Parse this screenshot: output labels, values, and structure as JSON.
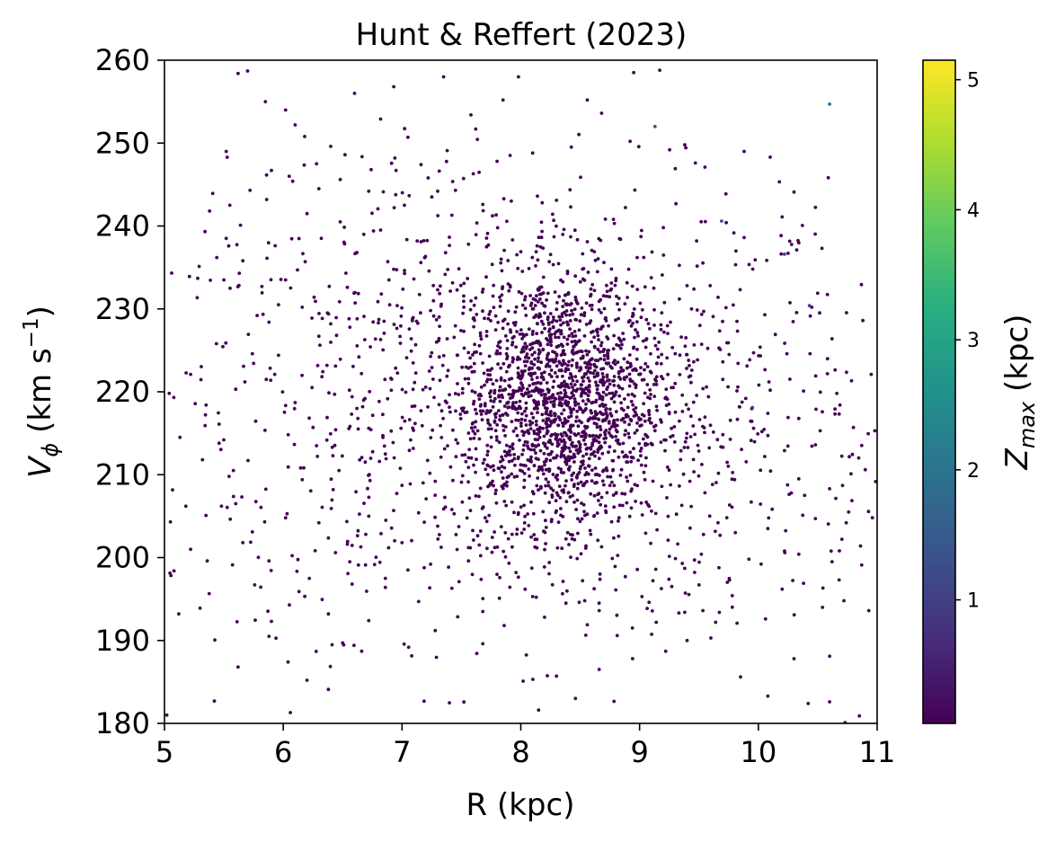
{
  "chart_data": {
    "type": "scatter",
    "title": "Hunt & Reffert (2023)",
    "xlabel": "R (kpc)",
    "ylabel_main": "V",
    "ylabel_sub": "ϕ",
    "ylabel_unit": " (km s",
    "ylabel_exp": "−1",
    "ylabel_close": ")",
    "xlim": [
      5,
      11
    ],
    "ylim": [
      180,
      260
    ],
    "xticks": [
      5,
      6,
      7,
      8,
      9,
      10,
      11
    ],
    "yticks": [
      180,
      190,
      200,
      210,
      220,
      230,
      240,
      250,
      260
    ],
    "xtick_labels": [
      "5",
      "6",
      "7",
      "8",
      "9",
      "10",
      "11"
    ],
    "ytick_labels": [
      "180",
      "190",
      "200",
      "210",
      "220",
      "230",
      "240",
      "250",
      "260"
    ],
    "grid": false,
    "colorbar": {
      "label_main": "Z",
      "label_sub": "max",
      "label_unit": " (kpc)",
      "range": [
        0.05,
        5.15
      ],
      "ticks": [
        1,
        2,
        3,
        4,
        5
      ],
      "tick_labels": [
        "1",
        "2",
        "3",
        "4",
        "5"
      ],
      "colormap": "viridis"
    },
    "series": [
      {
        "color": "#440154",
        "z_max": 0.1,
        "points": [
          [
            5.52,
            249
          ],
          [
            5.62,
            258.4
          ],
          [
            5.7,
            258.7
          ],
          [
            5.85,
            255
          ],
          [
            6.02,
            254
          ],
          [
            6.1,
            252.2
          ],
          [
            6.28,
            247.5
          ],
          [
            6.4,
            249.6
          ],
          [
            6.6,
            256
          ],
          [
            6.93,
            256.8
          ],
          [
            6.82,
            252.9
          ],
          [
            7.05,
            250.7
          ],
          [
            7.35,
            258
          ],
          [
            7.58,
            253.4
          ],
          [
            7.62,
            251.7
          ],
          [
            7.85,
            255.2
          ],
          [
            7.98,
            258
          ],
          [
            8.1,
            248.8
          ],
          [
            8.3,
            243.1
          ],
          [
            8.56,
            255.2
          ],
          [
            8.68,
            253.6
          ],
          [
            8.95,
            258.5
          ],
          [
            9.17,
            258.8
          ],
          [
            9.38,
            249.8
          ],
          [
            9.55,
            247.1
          ],
          [
            9.88,
            249
          ],
          [
            10.1,
            248.3
          ],
          [
            10.3,
            244.1
          ],
          [
            9.73,
            240.4
          ],
          [
            10.2,
            241.1
          ],
          [
            6.18,
            250.8
          ],
          [
            6.48,
            245.6
          ],
          [
            6.72,
            244.2
          ],
          [
            6.95,
            246.7
          ],
          [
            7.22,
            245.8
          ],
          [
            7.45,
            244.3
          ],
          [
            7.68,
            242.6
          ],
          [
            7.92,
            243
          ],
          [
            8.18,
            242.8
          ],
          [
            8.42,
            238.7
          ],
          [
            8.78,
            240.8
          ],
          [
            9.2,
            239.8
          ],
          [
            9.48,
            238.2
          ],
          [
            9.88,
            238.6
          ],
          [
            10.25,
            236.7
          ],
          [
            10.45,
            230.2
          ],
          [
            10.62,
            226.4
          ],
          [
            10.88,
            228.6
          ],
          [
            10.95,
            222.1
          ],
          [
            10.98,
            215.3
          ],
          [
            10.78,
            210.1
          ],
          [
            10.96,
            204.8
          ],
          [
            10.87,
            199.1
          ],
          [
            10.72,
            194.8
          ],
          [
            10.93,
            193.6
          ],
          [
            10.6,
            188.1
          ],
          [
            10.85,
            180.9
          ],
          [
            10.73,
            180.1
          ],
          [
            10.6,
            182.6
          ],
          [
            10.42,
            182.4
          ],
          [
            10.3,
            187.8
          ],
          [
            10.08,
            183.3
          ],
          [
            9.85,
            185.6
          ],
          [
            9.6,
            190.3
          ],
          [
            9.38,
            193.4
          ],
          [
            9.14,
            192.2
          ],
          [
            9.02,
            195.3
          ],
          [
            8.88,
            197.7
          ],
          [
            8.66,
            186.5
          ],
          [
            8.46,
            183
          ],
          [
            8.3,
            185.7
          ],
          [
            8.15,
            181.6
          ],
          [
            8.02,
            185.1
          ],
          [
            7.86,
            191.8
          ],
          [
            7.68,
            193.5
          ],
          [
            7.48,
            197.1
          ],
          [
            7.24,
            199.2
          ],
          [
            7.05,
            198.5
          ],
          [
            6.86,
            196.4
          ],
          [
            6.66,
            188.7
          ],
          [
            6.5,
            189.7
          ],
          [
            6.38,
            184.1
          ],
          [
            6.2,
            185.2
          ],
          [
            6.06,
            181.3
          ],
          [
            5.88,
            190.5
          ],
          [
            5.62,
            186.8
          ],
          [
            5.42,
            182.7
          ],
          [
            5.3,
            193.9
          ],
          [
            5.12,
            193.2
          ],
          [
            5.02,
            181
          ],
          [
            5.08,
            198.4
          ],
          [
            5.22,
            201
          ],
          [
            5.36,
            199.6
          ],
          [
            5.18,
            206.2
          ],
          [
            5.05,
            204.3
          ],
          [
            5.13,
            214.5
          ],
          [
            5.04,
            219.8
          ],
          [
            5.22,
            222.1
          ],
          [
            5.35,
            218.4
          ],
          [
            5.46,
            213.8
          ],
          [
            5.58,
            210.5
          ],
          [
            5.48,
            206.2
          ],
          [
            5.66,
            201.8
          ],
          [
            5.76,
            196.7
          ],
          [
            5.9,
            192.3
          ],
          [
            6.04,
            187.4
          ],
          [
            6.22,
            197.5
          ],
          [
            6.38,
            193.2
          ],
          [
            6.56,
            199.5
          ],
          [
            6.72,
            205
          ],
          [
            6.42,
            208.2
          ],
          [
            6.28,
            213.5
          ],
          [
            6.1,
            218.7
          ],
          [
            5.96,
            224.4
          ],
          [
            5.78,
            229.2
          ],
          [
            5.63,
            234.3
          ],
          [
            5.52,
            238.5
          ],
          [
            5.38,
            241.8
          ],
          [
            5.55,
            242.5
          ],
          [
            5.72,
            244.3
          ],
          [
            5.9,
            246.7
          ],
          [
            6.05,
            246
          ],
          [
            6.2,
            241.5
          ],
          [
            6.32,
            238.5
          ],
          [
            6.48,
            240.5
          ],
          [
            6.62,
            236.8
          ],
          [
            6.76,
            239.4
          ],
          [
            6.88,
            235.7
          ],
          [
            7.02,
            242.5
          ],
          [
            7.16,
            238.1
          ],
          [
            7.3,
            244.2
          ],
          [
            7.42,
            241.3
          ],
          [
            7.56,
            237.8
          ],
          [
            7.72,
            239.1
          ],
          [
            7.84,
            234.6
          ],
          [
            8,
            236.9
          ],
          [
            8.08,
            231.6
          ],
          [
            8.24,
            235.7
          ],
          [
            8.38,
            231.7
          ],
          [
            8.52,
            234.8
          ],
          [
            8.66,
            230.9
          ],
          [
            8.8,
            233.4
          ],
          [
            8.94,
            229.1
          ],
          [
            9.06,
            226.4
          ],
          [
            9.18,
            227.5
          ],
          [
            9.3,
            224.6
          ],
          [
            9.44,
            222.6
          ],
          [
            9.58,
            219.4
          ],
          [
            9.7,
            221.5
          ],
          [
            9.84,
            218.2
          ],
          [
            9.96,
            215.6
          ],
          [
            10.08,
            217.4
          ],
          [
            10.22,
            212.9
          ],
          [
            10.34,
            209.5
          ],
          [
            10.48,
            213.6
          ],
          [
            10.6,
            208.3
          ],
          [
            10.74,
            204.2
          ],
          [
            10.86,
            201.4
          ],
          [
            10.68,
            197.3
          ],
          [
            10.54,
            194
          ],
          [
            10.38,
            196.9
          ],
          [
            10.22,
            200.8
          ],
          [
            10.08,
            203.5
          ],
          [
            9.94,
            206.7
          ],
          [
            9.8,
            209.4
          ],
          [
            9.66,
            204.2
          ],
          [
            9.52,
            200.4
          ],
          [
            9.38,
            198.7
          ],
          [
            9.24,
            202.1
          ],
          [
            9.1,
            205.6
          ],
          [
            8.96,
            208.8
          ],
          [
            8.82,
            204.4
          ],
          [
            8.68,
            201.3
          ],
          [
            8.54,
            205.1
          ],
          [
            8.4,
            207.8
          ],
          [
            8.26,
            204.6
          ],
          [
            8.12,
            202.2
          ],
          [
            7.98,
            205.4
          ],
          [
            7.84,
            208.6
          ],
          [
            7.7,
            204.8
          ],
          [
            7.56,
            201.2
          ],
          [
            7.42,
            205.8
          ],
          [
            7.28,
            209.2
          ],
          [
            7.14,
            205.4
          ],
          [
            7,
            208.7
          ],
          [
            6.86,
            212.5
          ],
          [
            6.72,
            215.6
          ],
          [
            6.58,
            219.4
          ],
          [
            6.44,
            223.1
          ],
          [
            6.3,
            226.7
          ],
          [
            6.16,
            230.2
          ],
          [
            6.02,
            233.5
          ],
          [
            5.88,
            228.4
          ],
          [
            5.74,
            224.6
          ],
          [
            5.6,
            220.3
          ],
          [
            5.46,
            216.1
          ],
          [
            5.32,
            211.8
          ],
          [
            5.6,
            206.5
          ],
          [
            5.74,
            203.1
          ],
          [
            5.88,
            199.6
          ],
          [
            6.02,
            204.8
          ],
          [
            6.16,
            209.4
          ],
          [
            6.3,
            204.2
          ],
          [
            6.44,
            200.6
          ],
          [
            6.58,
            196.8
          ],
          [
            6.72,
            192.4
          ],
          [
            6.86,
            197.5
          ],
          [
            7,
            201.8
          ],
          [
            7.14,
            194.7
          ],
          [
            7.28,
            191.2
          ],
          [
            7.42,
            196.3
          ],
          [
            7.56,
            199.6
          ],
          [
            7.68,
            189.6
          ],
          [
            7.82,
            195.1
          ],
          [
            7.96,
            198.2
          ],
          [
            8.1,
            195.3
          ],
          [
            8.24,
            199.4
          ],
          [
            8.38,
            194.5
          ],
          [
            8.52,
            197.2
          ],
          [
            8.66,
            193.6
          ],
          [
            8.8,
            196.1
          ],
          [
            8.94,
            191.5
          ],
          [
            9.08,
            194.6
          ],
          [
            9.22,
            188.7
          ],
          [
            9.36,
            199.3
          ],
          [
            9.5,
            196.7
          ],
          [
            9.64,
            192.2
          ],
          [
            9.78,
            195.4
          ],
          [
            9.92,
            199.8
          ],
          [
            10.06,
            192.6
          ],
          [
            10.2,
            196.2
          ],
          [
            10.34,
            200.4
          ],
          [
            10.48,
            204.7
          ],
          [
            10.62,
            199.5
          ],
          [
            10.76,
            205.5
          ],
          [
            10.9,
            210.6
          ],
          [
            10.8,
            215.7
          ],
          [
            10.66,
            219.8
          ],
          [
            10.52,
            215.3
          ],
          [
            10.38,
            220.1
          ],
          [
            10.24,
            224.6
          ],
          [
            10.1,
            220.2
          ],
          [
            9.96,
            224.7
          ],
          [
            9.82,
            228.5
          ],
          [
            9.68,
            225.1
          ],
          [
            9.54,
            229.7
          ],
          [
            9.4,
            232.8
          ],
          [
            9.26,
            228.4
          ],
          [
            9.12,
            232.5
          ],
          [
            8.98,
            236.2
          ],
          [
            8.84,
            238.4
          ],
          [
            8.7,
            235.6
          ],
          [
            8.56,
            238.1
          ],
          [
            8.42,
            242.3
          ],
          [
            8.28,
            238.7
          ],
          [
            8.14,
            243.6
          ],
          [
            7.8,
            247.8
          ],
          [
            7.6,
            246.3
          ],
          [
            7.38,
            249.1
          ],
          [
            7.16,
            247.4
          ],
          [
            6.94,
            248.2
          ],
          [
            6.74,
            246.8
          ],
          [
            6.52,
            248.6
          ],
          [
            6.3,
            244.5
          ],
          [
            6.08,
            245.4
          ],
          [
            5.86,
            243.2
          ],
          [
            5.64,
            240.1
          ],
          [
            5.44,
            236.2
          ],
          [
            5.5,
            233.5
          ],
          [
            5.66,
            235.8
          ],
          [
            5.82,
            232.7
          ],
          [
            5.96,
            230.5
          ],
          [
            6.12,
            234.7
          ],
          [
            6.26,
            231.4
          ],
          [
            6.4,
            228.2
          ],
          [
            6.54,
            232.6
          ],
          [
            6.68,
            229.1
          ],
          [
            6.82,
            226.3
          ],
          [
            6.96,
            230.4
          ],
          [
            7.1,
            233.6
          ],
          [
            7.24,
            229.8
          ],
          [
            7.38,
            226.4
          ],
          [
            7.52,
            230.2
          ],
          [
            7.66,
            227.1
          ],
          [
            7.8,
            224.6
          ],
          [
            7.94,
            228.3
          ],
          [
            8.08,
            225.7
          ]
        ]
      },
      {
        "color": "#2d6e8e",
        "z_max": 2.0,
        "points": [
          [
            10.6,
            254.7
          ]
        ]
      },
      {
        "color": "#3b518b",
        "z_max": 1.3,
        "points": [
          [
            9.13,
            252
          ],
          [
            9.69,
            240.6
          ]
        ]
      },
      {
        "color": "#433e85",
        "z_max": 0.9,
        "points": [
          [
            10.43,
            230.4
          ],
          [
            10.22,
            236.6
          ],
          [
            9.95,
            218.1
          ]
        ]
      }
    ],
    "cluster_density": {
      "note_hidden": "",
      "center_x": 8.35,
      "center_y": 219,
      "spread_x": 0.42,
      "spread_y": 7.5,
      "n": 1500,
      "broad_center_x": 8.0,
      "broad_center_y": 218,
      "broad_spread_x": 1.55,
      "broad_spread_y": 13.5,
      "broad_n": 1150
    }
  }
}
